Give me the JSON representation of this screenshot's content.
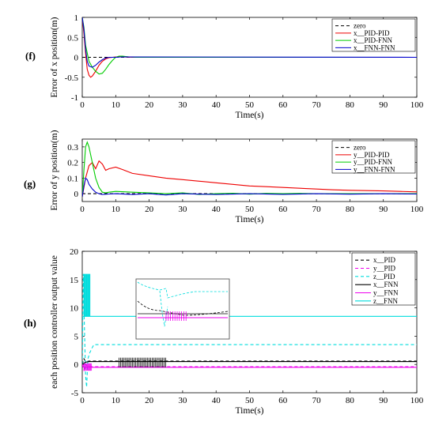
{
  "chart_data": [
    {
      "panel_label": "(f)",
      "type": "line",
      "xlabel": "Time(s)",
      "ylabel": "Error of x position(m)",
      "xlim": [
        0,
        100
      ],
      "ylim": [
        -1,
        1
      ],
      "xticks": [
        0,
        10,
        20,
        30,
        40,
        50,
        60,
        70,
        80,
        90,
        100
      ],
      "yticks": [
        -1,
        -0.5,
        0,
        0.5,
        1
      ],
      "legend_position": "top-right",
      "series": [
        {
          "name": "zero",
          "color": "#000000",
          "dash": "4,3",
          "points": [
            [
              0,
              0
            ],
            [
              100,
              0
            ]
          ]
        },
        {
          "name": "x__PID-PID",
          "color": "#ee0000",
          "dash": "",
          "points": [
            [
              0,
              1
            ],
            [
              0.5,
              0.6
            ],
            [
              1,
              0.1
            ],
            [
              1.5,
              -0.3
            ],
            [
              2,
              -0.45
            ],
            [
              2.5,
              -0.5
            ],
            [
              3,
              -0.47
            ],
            [
              4,
              -0.35
            ],
            [
              5,
              -0.2
            ],
            [
              6,
              -0.1
            ],
            [
              7,
              -0.04
            ],
            [
              8,
              -0.01
            ],
            [
              10,
              0.01
            ],
            [
              12,
              0.01
            ],
            [
              15,
              0
            ],
            [
              100,
              0
            ]
          ]
        },
        {
          "name": "x__PID-FNN",
          "color": "#00cc00",
          "dash": "",
          "points": [
            [
              0,
              1
            ],
            [
              0.5,
              0.75
            ],
            [
              1,
              0.3
            ],
            [
              2,
              -0.1
            ],
            [
              3,
              -0.25
            ],
            [
              4,
              -0.35
            ],
            [
              5,
              -0.42
            ],
            [
              6,
              -0.4
            ],
            [
              7,
              -0.3
            ],
            [
              8,
              -0.18
            ],
            [
              9,
              -0.08
            ],
            [
              10,
              0
            ],
            [
              11,
              0.03
            ],
            [
              12,
              0.03
            ],
            [
              14,
              0.01
            ],
            [
              16,
              0
            ],
            [
              100,
              0
            ]
          ]
        },
        {
          "name": "x__FNN-FNN",
          "color": "#0000cc",
          "dash": "",
          "points": [
            [
              0,
              1
            ],
            [
              0.5,
              0.7
            ],
            [
              1,
              0.2
            ],
            [
              1.5,
              -0.1
            ],
            [
              2,
              -0.22
            ],
            [
              3,
              -0.25
            ],
            [
              4,
              -0.2
            ],
            [
              5,
              -0.12
            ],
            [
              6,
              -0.06
            ],
            [
              7,
              -0.02
            ],
            [
              8,
              0
            ],
            [
              10,
              0
            ],
            [
              12,
              0.01
            ],
            [
              100,
              0
            ]
          ]
        }
      ]
    },
    {
      "panel_label": "(g)",
      "type": "line",
      "xlabel": "Time(s)",
      "ylabel": "Error of y position(m)",
      "xlim": [
        0,
        100
      ],
      "ylim": [
        -0.05,
        0.35
      ],
      "xticks": [
        0,
        10,
        20,
        30,
        40,
        50,
        60,
        70,
        80,
        90,
        100
      ],
      "yticks": [
        0,
        0.1,
        0.2,
        0.3
      ],
      "legend_position": "top-right",
      "series": [
        {
          "name": "zero",
          "color": "#000000",
          "dash": "4,3",
          "points": [
            [
              0,
              0
            ],
            [
              100,
              0
            ]
          ]
        },
        {
          "name": "y__PID-PID",
          "color": "#ee0000",
          "dash": "",
          "points": [
            [
              0,
              -0.02
            ],
            [
              1,
              0.1
            ],
            [
              2,
              0.18
            ],
            [
              3,
              0.2
            ],
            [
              4,
              0.16
            ],
            [
              5,
              0.21
            ],
            [
              6,
              0.19
            ],
            [
              7,
              0.15
            ],
            [
              8,
              0.16
            ],
            [
              10,
              0.17
            ],
            [
              12,
              0.155
            ],
            [
              15,
              0.13
            ],
            [
              20,
              0.115
            ],
            [
              25,
              0.1
            ],
            [
              30,
              0.09
            ],
            [
              35,
              0.08
            ],
            [
              40,
              0.07
            ],
            [
              45,
              0.06
            ],
            [
              50,
              0.05
            ],
            [
              55,
              0.045
            ],
            [
              60,
              0.04
            ],
            [
              65,
              0.035
            ],
            [
              70,
              0.03
            ],
            [
              75,
              0.025
            ],
            [
              80,
              0.022
            ],
            [
              85,
              0.02
            ],
            [
              90,
              0.018
            ],
            [
              95,
              0.015
            ],
            [
              100,
              0.012
            ]
          ]
        },
        {
          "name": "y__PID-FNN",
          "color": "#00cc00",
          "dash": "",
          "points": [
            [
              0,
              -0.02
            ],
            [
              0.5,
              0.15
            ],
            [
              1,
              0.3
            ],
            [
              1.5,
              0.33
            ],
            [
              2,
              0.3
            ],
            [
              3,
              0.2
            ],
            [
              4,
              0.1
            ],
            [
              5,
              0.04
            ],
            [
              6,
              0.01
            ],
            [
              7,
              0.005
            ],
            [
              8,
              0.01
            ],
            [
              10,
              0.015
            ],
            [
              15,
              0.01
            ],
            [
              20,
              0.005
            ],
            [
              25,
              0
            ],
            [
              30,
              0.005
            ],
            [
              35,
              -0.005
            ],
            [
              40,
              0
            ],
            [
              45,
              0.003
            ],
            [
              50,
              -0.003
            ],
            [
              55,
              0.002
            ],
            [
              60,
              0
            ],
            [
              65,
              0.002
            ],
            [
              70,
              0
            ],
            [
              80,
              0
            ],
            [
              90,
              0
            ],
            [
              100,
              0
            ]
          ]
        },
        {
          "name": "y__FNN-FNN",
          "color": "#0000cc",
          "dash": "",
          "points": [
            [
              0,
              -0.02
            ],
            [
              0.5,
              0.05
            ],
            [
              1,
              0.1
            ],
            [
              1.5,
              0.09
            ],
            [
              2,
              0.06
            ],
            [
              3,
              0.03
            ],
            [
              4,
              0.01
            ],
            [
              5,
              0
            ],
            [
              6,
              -0.005
            ],
            [
              8,
              -0.002
            ],
            [
              10,
              0
            ],
            [
              15,
              -0.005
            ],
            [
              20,
              0
            ],
            [
              25,
              -0.008
            ],
            [
              30,
              0
            ],
            [
              40,
              -0.005
            ],
            [
              50,
              0
            ],
            [
              60,
              -0.004
            ],
            [
              70,
              0
            ],
            [
              80,
              -0.003
            ],
            [
              90,
              0
            ],
            [
              100,
              -0.002
            ]
          ]
        }
      ]
    },
    {
      "panel_label": "(h)",
      "type": "line",
      "xlabel": "Time(s)",
      "ylabel": "each position controller output value",
      "xlim": [
        0,
        100
      ],
      "ylim": [
        -5,
        20
      ],
      "xticks": [
        0,
        10,
        20,
        30,
        40,
        50,
        60,
        70,
        80,
        90,
        100
      ],
      "yticks": [
        -5,
        0,
        5,
        10,
        15,
        20
      ],
      "legend_position": "top-right",
      "series": [
        {
          "name": "x__PID",
          "color": "#000000",
          "dash": "4,3",
          "points": [
            [
              0,
              0
            ],
            [
              0.5,
              1
            ],
            [
              1,
              0.5
            ],
            [
              2,
              0.6
            ],
            [
              100,
              0.6
            ]
          ]
        },
        {
          "name": "y__PID",
          "color": "#ee00ee",
          "dash": "4,3",
          "points": [
            [
              0,
              0
            ],
            [
              0.5,
              -1
            ],
            [
              1,
              0
            ],
            [
              2,
              -0.4
            ],
            [
              100,
              -0.4
            ]
          ]
        },
        {
          "name": "z__PID",
          "color": "#00dddd",
          "dash": "4,3",
          "points": [
            [
              0,
              0
            ],
            [
              0.3,
              16
            ],
            [
              0.6,
              8
            ],
            [
              1,
              -2
            ],
            [
              1.3,
              -4
            ],
            [
              1.7,
              1
            ],
            [
              2.2,
              2
            ],
            [
              3,
              3
            ],
            [
              3.5,
              3.5
            ],
            [
              100,
              3.5
            ]
          ]
        },
        {
          "name": "x__FNN",
          "color": "#000000",
          "dash": "",
          "points": [
            [
              0,
              0
            ],
            [
              1,
              0.4
            ],
            [
              2,
              0.5
            ],
            [
              100,
              0.5
            ]
          ]
        },
        {
          "name": "y__FNN",
          "color": "#ee00ee",
          "dash": "",
          "points": [
            [
              0,
              0
            ],
            [
              0.7,
              -0.6
            ],
            [
              1.5,
              -0.4
            ],
            [
              3,
              -0.5
            ],
            [
              100,
              -0.5
            ]
          ]
        },
        {
          "name": "z__FNN",
          "color": "#00dddd",
          "dash": "",
          "points": [
            [
              0,
              8.5
            ],
            [
              100,
              8.5
            ]
          ]
        }
      ],
      "inset": true
    }
  ]
}
